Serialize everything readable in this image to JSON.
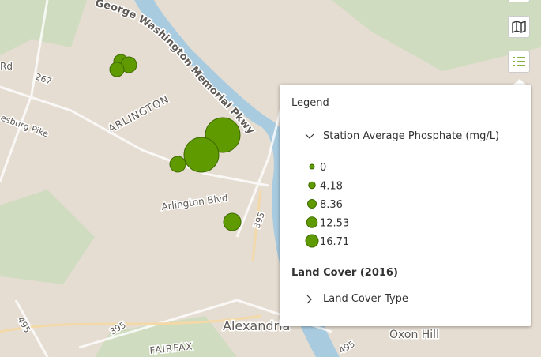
{
  "map_labels": [
    "George Washington Memorial Pkwy",
    "ARLINGTON",
    "Arlington Blvd",
    "Alexandria",
    "Oxon Hill",
    "FAIRFAX",
    "267",
    "395",
    "395",
    "495",
    "495",
    "Rd",
    "esburg Pike"
  ],
  "legend": {
    "title": "Legend",
    "layers": [
      {
        "title": "Station Average Phosphate (mg/L)",
        "items": [
          0,
          4.18,
          8.36,
          12.53,
          16.71
        ]
      },
      {
        "title": "Land Cover (2016)",
        "sublayer": "Land Cover Type"
      }
    ]
  }
}
